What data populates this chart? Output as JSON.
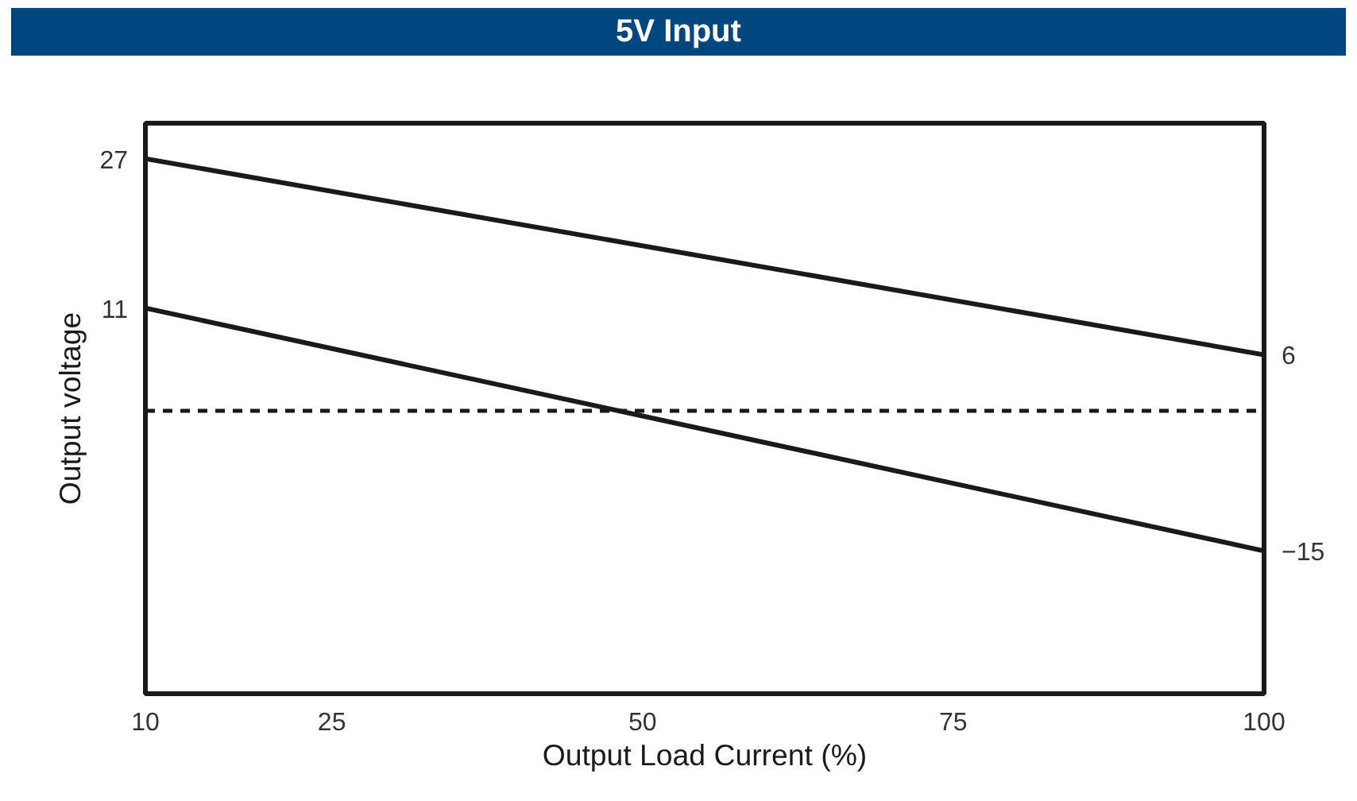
{
  "chart_data": {
    "type": "line",
    "title": "5V Input",
    "xlabel": "Output Load Current (%)",
    "ylabel": "Output voltage",
    "x": [
      10,
      100
    ],
    "xlim": [
      10,
      100
    ],
    "xticks": [
      10,
      25,
      50,
      75,
      100
    ],
    "ylim": [
      -30.3,
      30.8
    ],
    "yticks": [
      27,
      11
    ],
    "y2lim": [
      -30.3,
      30.8
    ],
    "y2ticks": [
      6,
      -15
    ],
    "series": [
      {
        "color": "#1a1a1a",
        "values": [
          27,
          6
        ]
      },
      {
        "color": "#1a1a1a",
        "values": [
          11,
          -15
        ]
      }
    ],
    "ref_lines": [
      {
        "axis": "y",
        "value": 0,
        "color": "#1a1a1a",
        "line_style": "dashed"
      }
    ],
    "grid": false,
    "marker": "none",
    "line_style": "solid"
  }
}
